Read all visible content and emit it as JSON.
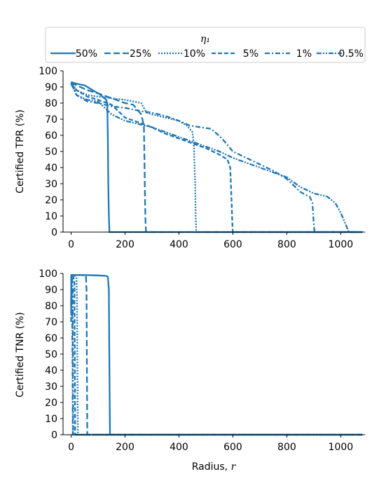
{
  "legend": {
    "title": "η₁",
    "entries": [
      {
        "label": "50%",
        "dash": "solid"
      },
      {
        "label": "25%",
        "dash": "dashed"
      },
      {
        "label": "10%",
        "dash": "dotted"
      },
      {
        "label": "5%",
        "dash": "dashed-short"
      },
      {
        "label": "1%",
        "dash": "dashdot"
      },
      {
        "label": "0.5%",
        "dash": "dashdotdot"
      }
    ]
  },
  "line_color": "#1f77b4",
  "chart_data": [
    {
      "type": "line",
      "ylabel": "Certified TPR (%)",
      "xlabel": "",
      "xlim": [
        -30,
        1090
      ],
      "ylim": [
        0,
        100
      ],
      "xticks": [
        0,
        200,
        400,
        600,
        800,
        1000
      ],
      "yticks": [
        0,
        10,
        20,
        30,
        40,
        50,
        60,
        70,
        80,
        90,
        100
      ],
      "series": [
        {
          "name": "50%",
          "dash": "solid",
          "x": [
            0,
            20,
            50,
            80,
            110,
            130,
            134,
            136,
            138,
            140,
            142,
            400,
            800,
            1080
          ],
          "y": [
            93,
            92,
            91,
            88,
            85,
            82,
            80,
            60,
            30,
            10,
            0,
            0,
            0,
            0
          ]
        },
        {
          "name": "25%",
          "dash": "dashed",
          "x": [
            0,
            20,
            60,
            100,
            150,
            200,
            230,
            260,
            270,
            272,
            274,
            276,
            278,
            600,
            1080
          ],
          "y": [
            93,
            91,
            88,
            86,
            83,
            80,
            79,
            73,
            66,
            45,
            20,
            5,
            0,
            0,
            0
          ]
        },
        {
          "name": "10%",
          "dash": "dotted",
          "x": [
            0,
            20,
            60,
            100,
            150,
            200,
            260,
            280,
            300,
            350,
            400,
            430,
            450,
            455,
            460,
            462,
            464,
            600,
            1080
          ],
          "y": [
            93,
            88,
            85,
            84,
            83,
            82,
            80,
            74,
            73,
            71,
            69,
            66,
            62,
            55,
            30,
            10,
            0,
            0,
            0
          ]
        },
        {
          "name": "5%",
          "dash": "dashed-short",
          "x": [
            0,
            20,
            60,
            100,
            150,
            200,
            250,
            300,
            350,
            400,
            450,
            500,
            550,
            580,
            590,
            595,
            598,
            600,
            800,
            1080
          ],
          "y": [
            92,
            88,
            84,
            82,
            79,
            71,
            68,
            65,
            61,
            58,
            55,
            52,
            48,
            45,
            40,
            20,
            5,
            0,
            0,
            0
          ]
        },
        {
          "name": "1%",
          "dash": "dashdot",
          "x": [
            0,
            20,
            60,
            100,
            150,
            200,
            260,
            300,
            350,
            400,
            440,
            480,
            520,
            560,
            600,
            650,
            700,
            750,
            800,
            850,
            870,
            885,
            895,
            900,
            903,
            1080
          ],
          "y": [
            92,
            85,
            81,
            80,
            78,
            77,
            75,
            74,
            72,
            69,
            66,
            65,
            64,
            58,
            50,
            46,
            42,
            38,
            33,
            25,
            23,
            22,
            18,
            5,
            0,
            0
          ]
        },
        {
          "name": "0.5%",
          "dash": "dashdotdot",
          "x": [
            0,
            20,
            60,
            100,
            150,
            200,
            250,
            300,
            350,
            400,
            450,
            500,
            550,
            600,
            650,
            700,
            750,
            800,
            850,
            900,
            950,
            980,
            1000,
            1020,
            1030,
            1080
          ],
          "y": [
            93,
            85,
            82,
            81,
            73,
            69,
            67,
            65,
            62,
            59,
            56,
            53,
            50,
            46,
            43,
            40,
            37,
            34,
            28,
            24,
            22,
            18,
            12,
            4,
            0,
            0
          ]
        }
      ]
    },
    {
      "type": "line",
      "ylabel": "Certified TNR (%)",
      "xlabel": "Radius, r",
      "xlim": [
        -30,
        1090
      ],
      "ylim": [
        0,
        100
      ],
      "xticks": [
        0,
        200,
        400,
        600,
        800,
        1000
      ],
      "yticks": [
        0,
        10,
        20,
        30,
        40,
        50,
        60,
        70,
        80,
        90,
        100
      ],
      "series": [
        {
          "name": "50%",
          "dash": "solid",
          "x": [
            0,
            1,
            50,
            100,
            130,
            136,
            140,
            142,
            144,
            600,
            1080
          ],
          "y": [
            80,
            99,
            99,
            98.8,
            98.5,
            98,
            90,
            40,
            0,
            0,
            0
          ]
        },
        {
          "name": "25%",
          "dash": "dashed",
          "x": [
            0,
            1,
            40,
            55,
            57,
            59,
            60,
            600,
            1080
          ],
          "y": [
            80,
            99,
            99,
            98.5,
            90,
            30,
            0,
            0,
            0
          ]
        },
        {
          "name": "10%",
          "dash": "dotted",
          "x": [
            0,
            1,
            15,
            20,
            22,
            24,
            25,
            600,
            1080
          ],
          "y": [
            80,
            99,
            98.5,
            97,
            80,
            20,
            0,
            0,
            0
          ]
        },
        {
          "name": "5%",
          "dash": "dashed-short",
          "x": [
            0,
            1,
            8,
            12,
            14,
            15,
            600,
            1080
          ],
          "y": [
            80,
            99,
            98,
            95,
            40,
            0,
            0,
            0
          ]
        },
        {
          "name": "1%",
          "dash": "dashdot",
          "x": [
            0,
            1,
            4,
            6,
            7,
            8,
            600,
            1080
          ],
          "y": [
            75,
            99,
            97,
            90,
            30,
            0,
            0,
            0
          ]
        },
        {
          "name": "0.5%",
          "dash": "dashdotdot",
          "x": [
            0,
            1,
            3,
            5,
            6,
            600,
            1080
          ],
          "y": [
            70,
            99,
            96,
            40,
            0,
            0,
            0
          ]
        }
      ]
    }
  ]
}
